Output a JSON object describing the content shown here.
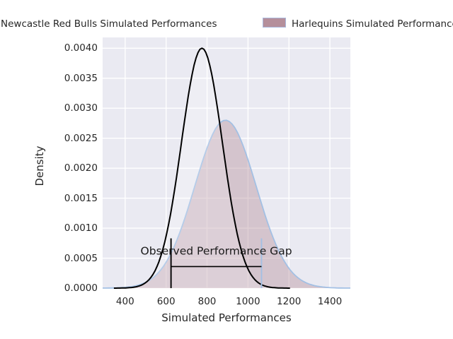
{
  "legend": {
    "entries": [
      {
        "label": "Newcastle Red Bulls Simulated Performances"
      },
      {
        "label": "Harlequins Simulated Performances"
      }
    ]
  },
  "chart_data": {
    "type": "area",
    "title": "",
    "xlabel": "Simulated Performances",
    "ylabel": "Density",
    "xlim": [
      290,
      1500
    ],
    "ylim": [
      0,
      0.00418
    ],
    "grid": true,
    "legend_position": "top-outside",
    "plot_background": "#eaeaf2",
    "gridline_color": "#ffffff",
    "xticks": [
      400,
      600,
      800,
      1000,
      1200,
      1400
    ],
    "xtick_labels": [
      "400",
      "600",
      "800",
      "1000",
      "1200",
      "1400"
    ],
    "yticks": [
      0,
      0.0005,
      0.001,
      0.0015,
      0.002,
      0.0025,
      0.003,
      0.0035,
      0.004
    ],
    "ytick_labels": [
      "0.0000",
      "0.0005",
      "0.0010",
      "0.0015",
      "0.0020",
      "0.0025",
      "0.0030",
      "0.0035",
      "0.0040"
    ],
    "series": [
      {
        "name": "Newcastle Red Bulls Simulated Performances",
        "style": "kde-line",
        "mean": 775,
        "sd": 100,
        "peak_density": 0.004,
        "line_color": "#000000",
        "line_width": 2,
        "fill_color": "#ffffff",
        "fill_opacity": 0.2
      },
      {
        "name": "Harlequins Simulated Performances",
        "style": "kde-fill",
        "mean": 890,
        "sd": 150,
        "peak_density": 0.0028,
        "line_color": "#a3c0e4",
        "line_width": 1.8,
        "fill_color": "#b58f9b",
        "fill_opacity": 0.42
      }
    ],
    "annotation": {
      "label": "Observed Performance Gap",
      "label_x": 845,
      "label_density": 0.00056,
      "label_color": "#1a1a1a",
      "gap_line_density": 0.00036,
      "gap_line_color": "#000000",
      "vline_top_density": 0.00083,
      "vlines": [
        {
          "x": 624,
          "color": "#000000"
        },
        {
          "x": 1066,
          "color": "#a3c0e4"
        }
      ]
    }
  }
}
